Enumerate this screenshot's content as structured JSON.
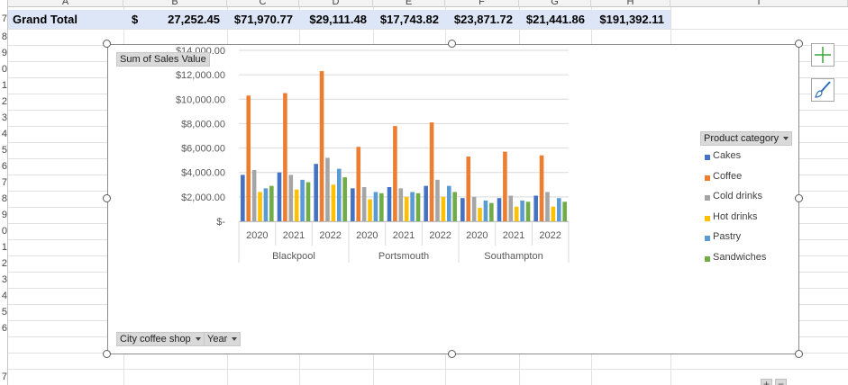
{
  "sheet": {
    "columns": [
      "A",
      "B",
      "C",
      "D",
      "E",
      "F",
      "G",
      "H",
      "I"
    ],
    "rows": [
      "7",
      "8",
      "9",
      "0",
      "1",
      "2",
      "3",
      "4",
      "5",
      "6",
      "7",
      "8",
      "9",
      "0",
      "1",
      "2",
      "3",
      "4",
      "5",
      "6",
      "7"
    ],
    "grand_total": {
      "label": "Grand Total",
      "currency": "$",
      "values": [
        "27,252.45",
        "$71,970.77",
        "$29,111.48",
        "$17,743.82",
        "$23,871.72",
        "$21,441.86",
        "$191,392.11"
      ]
    }
  },
  "chart": {
    "value_field": "Sum of Sales Value",
    "legend_field": "Product category",
    "axis_fields": [
      "City coffee shop",
      "Year"
    ],
    "zoom_plus": "+",
    "zoom_minus": "−",
    "colors": {
      "Cakes": "#4472c4",
      "Coffee": "#ed7d31",
      "Cold drinks": "#a5a5a5",
      "Hot drinks": "#ffc000",
      "Pastry": "#5b9bd5",
      "Sandwiches": "#70ad47"
    }
  },
  "chart_data": {
    "type": "bar",
    "y_ticks": [
      "$-",
      "$2,000.00",
      "$4,000.00",
      "$6,000.00",
      "$8,000.00",
      "$10,000.00",
      "$12,000.00",
      "$14,000.00"
    ],
    "ylim": [
      0,
      14000
    ],
    "cities": [
      "Blackpool",
      "Portsmouth",
      "Southampton"
    ],
    "years": [
      "2020",
      "2021",
      "2022"
    ],
    "series": [
      {
        "name": "Cakes",
        "values": [
          3800,
          4000,
          4700,
          2700,
          2800,
          2900,
          1900,
          1900,
          2100
        ]
      },
      {
        "name": "Coffee",
        "values": [
          10300,
          10500,
          12300,
          6100,
          7800,
          8100,
          5300,
          5700,
          5400
        ]
      },
      {
        "name": "Cold drinks",
        "values": [
          4200,
          3800,
          5200,
          2800,
          2700,
          3400,
          2000,
          2100,
          2400
        ]
      },
      {
        "name": "Hot drinks",
        "values": [
          2400,
          2600,
          3000,
          1800,
          2000,
          2000,
          1100,
          1200,
          1200
        ]
      },
      {
        "name": "Pastry",
        "values": [
          2700,
          3400,
          4300,
          2400,
          2400,
          2900,
          1700,
          1700,
          1900
        ]
      },
      {
        "name": "Sandwiches",
        "values": [
          2900,
          3200,
          3600,
          2300,
          2300,
          2400,
          1500,
          1600,
          1600
        ]
      }
    ]
  }
}
